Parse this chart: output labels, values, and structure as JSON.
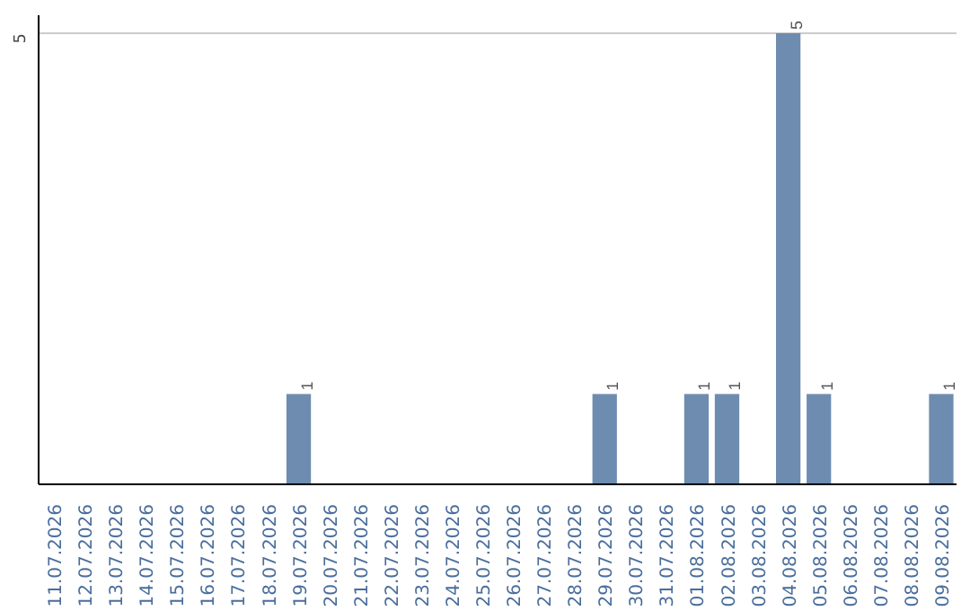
{
  "chart_data": {
    "type": "bar",
    "categories": [
      "11.07.2026",
      "12.07.2026",
      "13.07.2026",
      "14.07.2026",
      "15.07.2026",
      "16.07.2026",
      "17.07.2026",
      "18.07.2026",
      "19.07.2026",
      "20.07.2026",
      "21.07.2026",
      "22.07.2026",
      "23.07.2026",
      "24.07.2026",
      "25.07.2026",
      "26.07.2026",
      "27.07.2026",
      "28.07.2026",
      "29.07.2026",
      "30.07.2026",
      "31.07.2026",
      "01.08.2026",
      "02.08.2026",
      "03.08.2026",
      "04.08.2026",
      "05.08.2026",
      "06.08.2026",
      "07.08.2026",
      "08.08.2026",
      "09.08.2026"
    ],
    "values": [
      0,
      0,
      0,
      0,
      0,
      0,
      0,
      0,
      1,
      0,
      0,
      0,
      0,
      0,
      0,
      0,
      0,
      0,
      1,
      0,
      0,
      1,
      1,
      0,
      5,
      1,
      0,
      0,
      0,
      1
    ],
    "value_labels": [
      null,
      null,
      null,
      null,
      null,
      null,
      null,
      null,
      "1",
      null,
      null,
      null,
      null,
      null,
      null,
      null,
      null,
      null,
      "1",
      null,
      null,
      "1",
      "1",
      null,
      "5",
      "1",
      null,
      null,
      null,
      "1"
    ],
    "color": "#6d8caf",
    "ylim": [
      0,
      5.2
    ],
    "yticks": [
      5
    ],
    "grid": "y"
  }
}
